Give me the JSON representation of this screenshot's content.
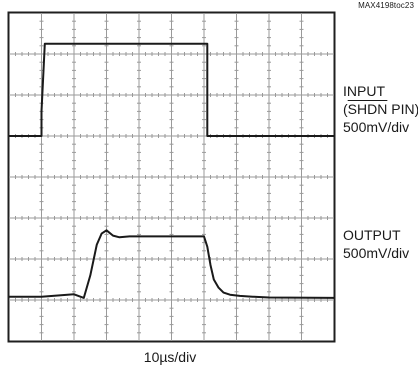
{
  "figure_ref": "MAX4198toc23",
  "chart_data": {
    "type": "line",
    "title": "",
    "xlabel": "10µs/div",
    "ylabel": "",
    "grid": true,
    "divisions": {
      "x": 10,
      "y": 8
    },
    "channels": [
      {
        "name_lines": [
          "INPUT",
          "(SHDN PIN)"
        ],
        "overlined_text": "SHDN",
        "scale": "500mV/div"
      },
      {
        "name_lines": [
          "OUTPUT"
        ],
        "scale": "500mV/div"
      }
    ],
    "series": [
      {
        "name": "INPUT (SHDN PIN)",
        "x": [
          0,
          1.0,
          1.0,
          1.1,
          6.1,
          6.1,
          10
        ],
        "y": [
          5.0,
          5.0,
          5.6,
          7.25,
          7.25,
          5.0,
          5.0
        ]
      },
      {
        "name": "OUTPUT",
        "x": [
          0,
          1.0,
          2.0,
          2.3,
          2.5,
          2.7,
          2.85,
          3.0,
          3.2,
          3.4,
          3.7,
          4.0,
          6.0,
          6.1,
          6.2,
          6.3,
          6.45,
          6.6,
          6.8,
          7.1,
          7.5,
          8.0,
          10
        ],
        "y": [
          1.08,
          1.08,
          1.14,
          1.05,
          1.6,
          2.35,
          2.62,
          2.7,
          2.57,
          2.53,
          2.55,
          2.55,
          2.55,
          2.3,
          1.85,
          1.5,
          1.3,
          1.18,
          1.13,
          1.1,
          1.08,
          1.06,
          1.05
        ]
      }
    ]
  }
}
